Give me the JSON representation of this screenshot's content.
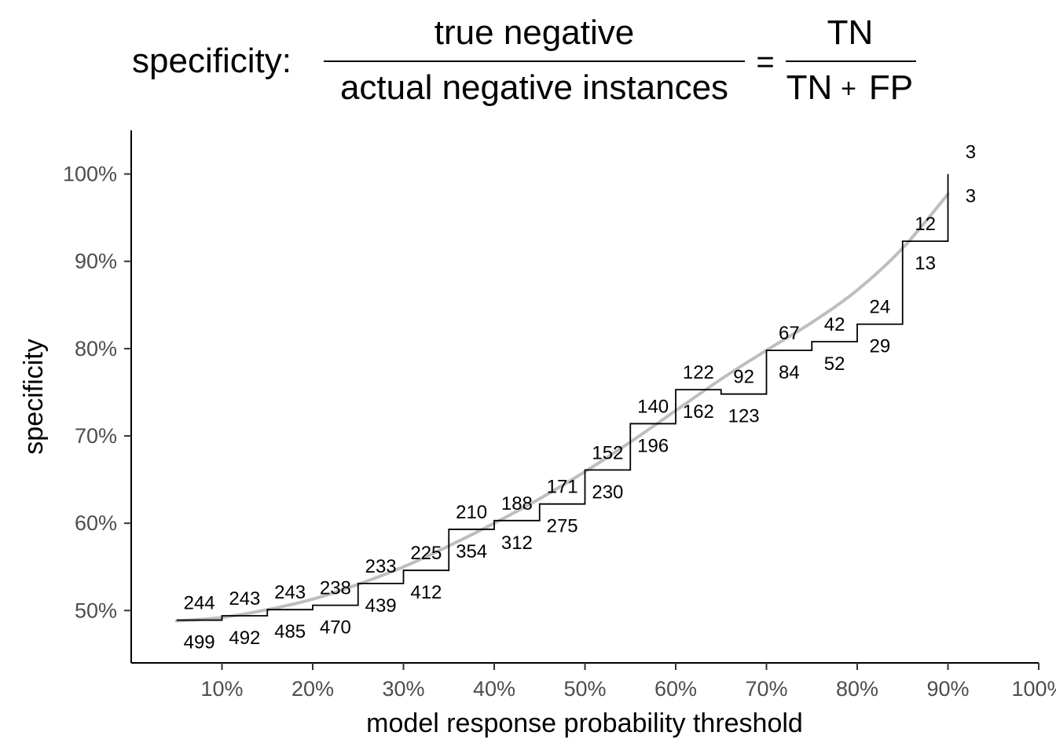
{
  "chart_data": {
    "type": "line",
    "title": {
      "prefix": "specificity:",
      "numerator": "true negative",
      "denominator": "actual negative instances",
      "equals": "=",
      "rhs_numerator": "TN",
      "rhs_denominator_left": "TN",
      "rhs_plus": "+",
      "rhs_denominator_right": "FP"
    },
    "xlabel": "model response probability threshold",
    "ylabel": "specificity",
    "xlim": [
      0.0,
      1.0
    ],
    "ylim": [
      0.44,
      1.05
    ],
    "x_ticks": [
      0.1,
      0.2,
      0.3,
      0.4,
      0.5,
      0.6,
      0.7,
      0.8,
      0.9,
      1.0
    ],
    "x_tick_labels": [
      "10%",
      "20%",
      "30%",
      "40%",
      "50%",
      "60%",
      "70%",
      "80%",
      "90%",
      "100%"
    ],
    "y_ticks": [
      0.5,
      0.6,
      0.7,
      0.8,
      0.9,
      1.0
    ],
    "y_tick_labels": [
      "50%",
      "60%",
      "70%",
      "80%",
      "90%",
      "100%"
    ],
    "grid": false,
    "series": [
      {
        "style": "step",
        "color": "#000000",
        "points": [
          {
            "x": 0.05,
            "y": 0.489,
            "tn": "244",
            "total": "499"
          },
          {
            "x": 0.1,
            "y": 0.494,
            "tn": "243",
            "total": "492"
          },
          {
            "x": 0.15,
            "y": 0.501,
            "tn": "243",
            "total": "485"
          },
          {
            "x": 0.2,
            "y": 0.506,
            "tn": "238",
            "total": "470"
          },
          {
            "x": 0.25,
            "y": 0.531,
            "tn": "233",
            "total": "439"
          },
          {
            "x": 0.3,
            "y": 0.546,
            "tn": "225",
            "total": "412"
          },
          {
            "x": 0.35,
            "y": 0.593,
            "tn": "210",
            "total": "354"
          },
          {
            "x": 0.4,
            "y": 0.603,
            "tn": "188",
            "total": "312"
          },
          {
            "x": 0.45,
            "y": 0.622,
            "tn": "171",
            "total": "275"
          },
          {
            "x": 0.5,
            "y": 0.661,
            "tn": "152",
            "total": "230"
          },
          {
            "x": 0.55,
            "y": 0.714,
            "tn": "140",
            "total": "196"
          },
          {
            "x": 0.6,
            "y": 0.753,
            "tn": "122",
            "total": "162"
          },
          {
            "x": 0.65,
            "y": 0.748,
            "tn": "92",
            "total": "123"
          },
          {
            "x": 0.7,
            "y": 0.798,
            "tn": "67",
            "total": "84"
          },
          {
            "x": 0.75,
            "y": 0.808,
            "tn": "42",
            "total": "52"
          },
          {
            "x": 0.8,
            "y": 0.828,
            "tn": "24",
            "total": "29"
          },
          {
            "x": 0.85,
            "y": 0.923,
            "tn": "12",
            "total": "13"
          },
          {
            "x": 0.9,
            "y": 1.0,
            "tn": "3",
            "total": "3"
          }
        ]
      },
      {
        "style": "smooth",
        "color": "#bebebe",
        "x": [
          0.05,
          0.1,
          0.15,
          0.2,
          0.25,
          0.3,
          0.35,
          0.4,
          0.45,
          0.5,
          0.55,
          0.6,
          0.65,
          0.7,
          0.75,
          0.8,
          0.85,
          0.9
        ],
        "values": [
          0.488,
          0.492,
          0.501,
          0.513,
          0.53,
          0.55,
          0.574,
          0.6,
          0.628,
          0.659,
          0.693,
          0.729,
          0.765,
          0.798,
          0.83,
          0.867,
          0.915,
          0.977
        ]
      }
    ]
  }
}
